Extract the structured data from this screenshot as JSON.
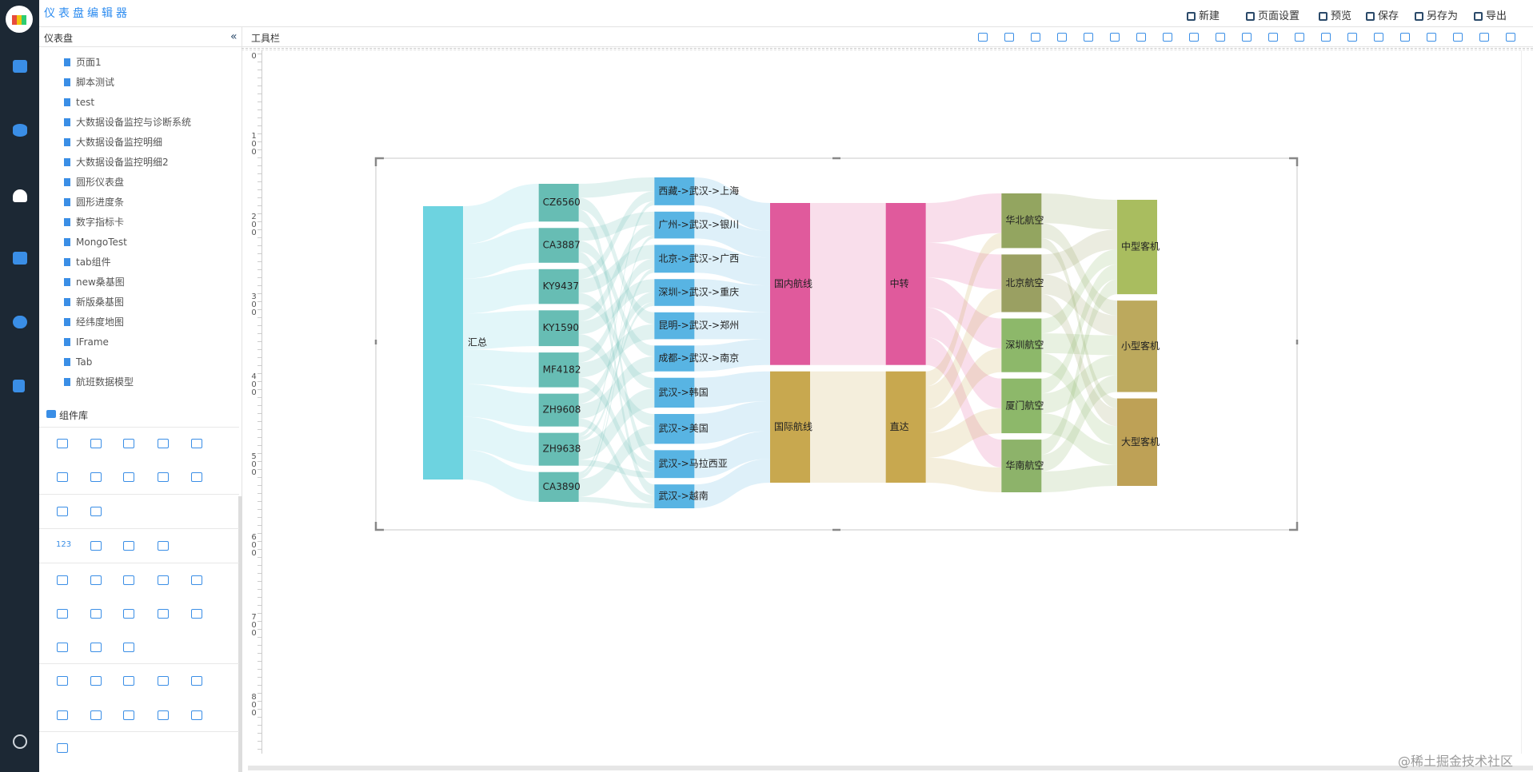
{
  "header": {
    "title": "仪表盘编辑器",
    "actions": [
      "新建",
      "页面设置",
      "预览",
      "保存",
      "另存为",
      "导出"
    ]
  },
  "panel": {
    "title": "仪表盘",
    "items": [
      "页面1",
      "脚本测试",
      "test",
      "大数据设备监控与诊断系统",
      "大数据设备监控明细",
      "大数据设备监控明细2",
      "圆形仪表盘",
      "圆形进度条",
      "数字指标卡",
      "MongoTest",
      "tab组件",
      "new桑基图",
      "新版桑基图",
      "经纬度地图",
      "IFrame",
      "Tab",
      "航班数据模型"
    ]
  },
  "components": {
    "title": "组件库",
    "icon_texts": [
      "123"
    ]
  },
  "toolbar": {
    "title": "工具栏"
  },
  "ruler": {
    "ticks": [
      0,
      100,
      200,
      300,
      400,
      500,
      600,
      700,
      800
    ]
  },
  "watermark": "@稀土掘金技术社区",
  "chart_data": {
    "type": "sankey",
    "nodes": [
      {
        "name": "汇总",
        "color": "#6dd3e0"
      },
      {
        "name": "CZ6560",
        "color": "#67bdb4"
      },
      {
        "name": "CA3887",
        "color": "#67bdb4"
      },
      {
        "name": "KY9437",
        "color": "#67bdb4"
      },
      {
        "name": "KY1590",
        "color": "#67bdb4"
      },
      {
        "name": "MF4182",
        "color": "#67bdb4"
      },
      {
        "name": "ZH9608",
        "color": "#67bdb4"
      },
      {
        "name": "ZH9638",
        "color": "#67bdb4"
      },
      {
        "name": "CA3890",
        "color": "#67bdb4"
      },
      {
        "name": "西藏->武汉->上海",
        "color": "#58b4e3"
      },
      {
        "name": "广州->武汉->银川",
        "color": "#58b4e3"
      },
      {
        "name": "北京->武汉->广西",
        "color": "#58b4e3"
      },
      {
        "name": "深圳->武汉->重庆",
        "color": "#58b4e3"
      },
      {
        "name": "昆明->武汉->郑州",
        "color": "#58b4e3"
      },
      {
        "name": "成都->武汉->南京",
        "color": "#58b4e3"
      },
      {
        "name": "武汉->韩国",
        "color": "#58b4e3"
      },
      {
        "name": "武汉->美国",
        "color": "#58b4e3"
      },
      {
        "name": "武汉->马拉西亚",
        "color": "#58b4e3"
      },
      {
        "name": "武汉->越南",
        "color": "#58b4e3"
      },
      {
        "name": "国内航线",
        "color": "#e05a9c"
      },
      {
        "name": "国际航线",
        "color": "#c8a84f"
      },
      {
        "name": "中转",
        "color": "#e05a9c"
      },
      {
        "name": "直达",
        "color": "#c8a84f"
      },
      {
        "name": "华北航空",
        "color": "#93a560"
      },
      {
        "name": "北京航空",
        "color": "#9aa062"
      },
      {
        "name": "深圳航空",
        "color": "#8db86a"
      },
      {
        "name": "厦门航空",
        "color": "#8db86a"
      },
      {
        "name": "华南航空",
        "color": "#8db36a"
      },
      {
        "name": "中型客机",
        "color": "#a9bd5f"
      },
      {
        "name": "小型客机",
        "color": "#bca95d"
      },
      {
        "name": "大型客机",
        "color": "#bea156"
      }
    ],
    "links": [
      {
        "source": 0,
        "target": 1,
        "value": 38
      },
      {
        "source": 0,
        "target": 2,
        "value": 35
      },
      {
        "source": 0,
        "target": 3,
        "value": 35
      },
      {
        "source": 0,
        "target": 4,
        "value": 36
      },
      {
        "source": 0,
        "target": 5,
        "value": 35
      },
      {
        "source": 0,
        "target": 6,
        "value": 33
      },
      {
        "source": 0,
        "target": 7,
        "value": 33
      },
      {
        "source": 0,
        "target": 8,
        "value": 30
      },
      {
        "source": 1,
        "target": 9,
        "value": 14
      },
      {
        "source": 1,
        "target": 13,
        "value": 12
      },
      {
        "source": 1,
        "target": 17,
        "value": 12
      },
      {
        "source": 2,
        "target": 10,
        "value": 13
      },
      {
        "source": 2,
        "target": 14,
        "value": 11
      },
      {
        "source": 2,
        "target": 18,
        "value": 11
      },
      {
        "source": 3,
        "target": 11,
        "value": 14
      },
      {
        "source": 3,
        "target": 15,
        "value": 11
      },
      {
        "source": 3,
        "target": 9,
        "value": 10
      },
      {
        "source": 4,
        "target": 12,
        "value": 13
      },
      {
        "source": 4,
        "target": 16,
        "value": 12
      },
      {
        "source": 4,
        "target": 10,
        "value": 11
      },
      {
        "source": 5,
        "target": 13,
        "value": 15
      },
      {
        "source": 5,
        "target": 17,
        "value": 10
      },
      {
        "source": 5,
        "target": 11,
        "value": 10
      },
      {
        "source": 6,
        "target": 14,
        "value": 15
      },
      {
        "source": 6,
        "target": 18,
        "value": 8
      },
      {
        "source": 6,
        "target": 12,
        "value": 10
      },
      {
        "source": 7,
        "target": 15,
        "value": 19
      },
      {
        "source": 7,
        "target": 12,
        "value": 4
      },
      {
        "source": 7,
        "target": 9,
        "value": 4
      },
      {
        "source": 7,
        "target": 17,
        "value": 6
      },
      {
        "source": 8,
        "target": 16,
        "value": 18
      },
      {
        "source": 8,
        "target": 18,
        "value": 5
      },
      {
        "source": 8,
        "target": 10,
        "value": 3
      },
      {
        "source": 8,
        "target": 11,
        "value": 4
      },
      {
        "source": 9,
        "target": 19,
        "value": 28
      },
      {
        "source": 10,
        "target": 19,
        "value": 27
      },
      {
        "source": 11,
        "target": 19,
        "value": 28
      },
      {
        "source": 12,
        "target": 19,
        "value": 27
      },
      {
        "source": 13,
        "target": 19,
        "value": 27
      },
      {
        "source": 14,
        "target": 19,
        "value": 26
      },
      {
        "source": 15,
        "target": 20,
        "value": 30
      },
      {
        "source": 16,
        "target": 20,
        "value": 30
      },
      {
        "source": 17,
        "target": 20,
        "value": 28
      },
      {
        "source": 18,
        "target": 20,
        "value": 24
      },
      {
        "source": 19,
        "target": 21,
        "value": 163
      },
      {
        "source": 20,
        "target": 22,
        "value": 112
      },
      {
        "source": 21,
        "target": 23,
        "value": 40
      },
      {
        "source": 21,
        "target": 24,
        "value": 35
      },
      {
        "source": 21,
        "target": 25,
        "value": 30
      },
      {
        "source": 21,
        "target": 26,
        "value": 30
      },
      {
        "source": 21,
        "target": 27,
        "value": 28
      },
      {
        "source": 22,
        "target": 23,
        "value": 15
      },
      {
        "source": 22,
        "target": 24,
        "value": 23
      },
      {
        "source": 22,
        "target": 25,
        "value": 24
      },
      {
        "source": 22,
        "target": 26,
        "value": 25
      },
      {
        "source": 22,
        "target": 27,
        "value": 25
      },
      {
        "source": 23,
        "target": 28,
        "value": 30
      },
      {
        "source": 23,
        "target": 29,
        "value": 15
      },
      {
        "source": 23,
        "target": 30,
        "value": 10
      },
      {
        "source": 24,
        "target": 28,
        "value": 20
      },
      {
        "source": 24,
        "target": 29,
        "value": 20
      },
      {
        "source": 24,
        "target": 30,
        "value": 18
      },
      {
        "source": 25,
        "target": 28,
        "value": 15
      },
      {
        "source": 25,
        "target": 29,
        "value": 20
      },
      {
        "source": 25,
        "target": 30,
        "value": 19
      },
      {
        "source": 26,
        "target": 28,
        "value": 15
      },
      {
        "source": 26,
        "target": 29,
        "value": 20
      },
      {
        "source": 26,
        "target": 30,
        "value": 20
      },
      {
        "source": 27,
        "target": 28,
        "value": 15
      },
      {
        "source": 27,
        "target": 29,
        "value": 17
      },
      {
        "source": 27,
        "target": 30,
        "value": 21
      }
    ]
  }
}
